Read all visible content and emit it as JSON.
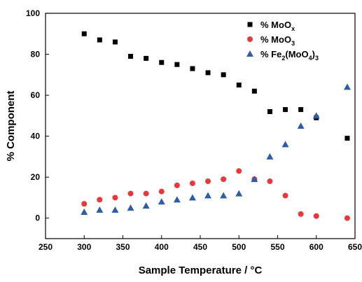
{
  "chart_data": {
    "type": "scatter",
    "xlabel": "Sample Temperature / °C",
    "ylabel": "% Component",
    "xlim": [
      250,
      650
    ],
    "ylim": [
      -10,
      100
    ],
    "x_ticks": [
      250,
      300,
      350,
      400,
      450,
      500,
      550,
      600,
      650
    ],
    "y_ticks": [
      0,
      20,
      40,
      60,
      80,
      100
    ],
    "grid": false,
    "legend_position": "top-right",
    "series": [
      {
        "name": "% MoOx",
        "name_parts": [
          {
            "t": "% MoO"
          },
          {
            "t": "x",
            "sub": true
          }
        ],
        "marker": "square",
        "color": "#000000",
        "points": [
          [
            300,
            90
          ],
          [
            320,
            87
          ],
          [
            340,
            86
          ],
          [
            360,
            79
          ],
          [
            380,
            78
          ],
          [
            400,
            76
          ],
          [
            420,
            75
          ],
          [
            440,
            73
          ],
          [
            460,
            71
          ],
          [
            480,
            70
          ],
          [
            500,
            65
          ],
          [
            520,
            62
          ],
          [
            540,
            52
          ],
          [
            560,
            53
          ],
          [
            580,
            53
          ],
          [
            600,
            49
          ],
          [
            640,
            39
          ]
        ]
      },
      {
        "name": "% MoO3",
        "name_parts": [
          {
            "t": "% MoO"
          },
          {
            "t": "3",
            "sub": true
          }
        ],
        "marker": "circle",
        "color": "#e8383a",
        "points": [
          [
            300,
            7
          ],
          [
            320,
            9
          ],
          [
            340,
            10
          ],
          [
            360,
            12
          ],
          [
            380,
            12
          ],
          [
            400,
            13
          ],
          [
            420,
            16
          ],
          [
            440,
            17
          ],
          [
            460,
            18
          ],
          [
            480,
            19
          ],
          [
            500,
            23
          ],
          [
            520,
            19
          ],
          [
            540,
            18
          ],
          [
            560,
            11
          ],
          [
            580,
            2
          ],
          [
            600,
            1
          ],
          [
            640,
            0
          ]
        ]
      },
      {
        "name": "% Fe2(MoO4)3",
        "name_parts": [
          {
            "t": "% Fe"
          },
          {
            "t": "2",
            "sub": true
          },
          {
            "t": "(MoO"
          },
          {
            "t": "4",
            "sub": true
          },
          {
            "t": ")"
          },
          {
            "t": "3",
            "sub": true
          }
        ],
        "marker": "triangle",
        "color": "#2e5da8",
        "points": [
          [
            300,
            3
          ],
          [
            320,
            4
          ],
          [
            340,
            4
          ],
          [
            360,
            5
          ],
          [
            380,
            6
          ],
          [
            400,
            8
          ],
          [
            420,
            9
          ],
          [
            440,
            10
          ],
          [
            460,
            11
          ],
          [
            480,
            11
          ],
          [
            500,
            12
          ],
          [
            520,
            19
          ],
          [
            540,
            30
          ],
          [
            560,
            36
          ],
          [
            580,
            45
          ],
          [
            600,
            50
          ],
          [
            640,
            64
          ]
        ]
      }
    ]
  }
}
